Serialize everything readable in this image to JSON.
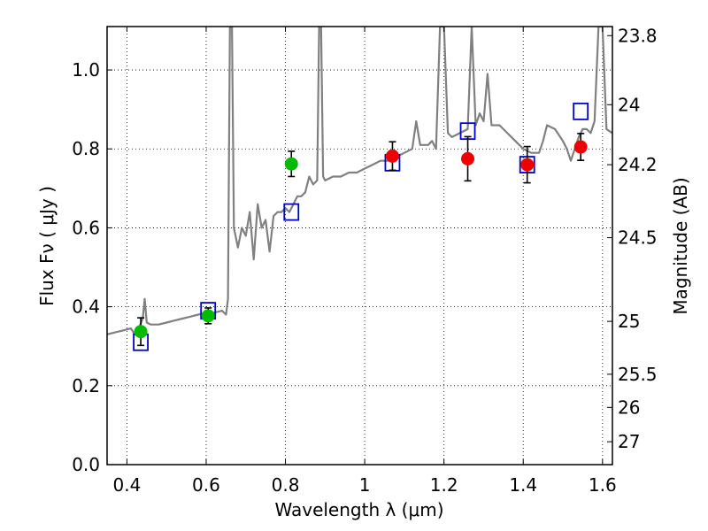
{
  "chart_data": {
    "type": "scatter",
    "xlabel": "Wavelength  λ (μm)",
    "ylabel": "Flux  Fν  ( μJy )",
    "y2label": "Magnitude (AB)",
    "xlim": [
      0.35,
      1.625
    ],
    "ylim": [
      0.0,
      1.11
    ],
    "grid": true,
    "x_ticks": [
      0.4,
      0.6,
      0.8,
      1.0,
      1.2,
      1.4,
      1.6
    ],
    "x_tick_labels": [
      "0.4",
      "0.6",
      "0.8",
      "1",
      "1.2",
      "1.4",
      "1.6"
    ],
    "y_ticks": [
      0.0,
      0.2,
      0.4,
      0.6,
      0.8,
      1.0
    ],
    "y_tick_labels": [
      "0.0",
      "0.2",
      "0.4",
      "0.6",
      "0.8",
      "1.0"
    ],
    "mag_ticks": [
      {
        "label": "23.8",
        "flux": 1.087
      },
      {
        "label": "24",
        "flux": 0.912
      },
      {
        "label": "24.2",
        "flux": 0.76
      },
      {
        "label": "24.5",
        "flux": 0.575
      },
      {
        "label": "25",
        "flux": 0.363
      },
      {
        "label": "25.5",
        "flux": 0.229
      },
      {
        "label": "26",
        "flux": 0.145
      },
      {
        "label": "27",
        "flux": 0.058
      }
    ],
    "series": [
      {
        "name": "model-spectrum",
        "kind": "line",
        "color": "#808080",
        "points": [
          [
            0.35,
            0.33
          ],
          [
            0.37,
            0.335
          ],
          [
            0.39,
            0.34
          ],
          [
            0.41,
            0.345
          ],
          [
            0.42,
            0.33
          ],
          [
            0.43,
            0.345
          ],
          [
            0.44,
            0.37
          ],
          [
            0.445,
            0.42
          ],
          [
            0.45,
            0.36
          ],
          [
            0.46,
            0.355
          ],
          [
            0.48,
            0.355
          ],
          [
            0.5,
            0.36
          ],
          [
            0.52,
            0.365
          ],
          [
            0.54,
            0.37
          ],
          [
            0.56,
            0.375
          ],
          [
            0.58,
            0.38
          ],
          [
            0.6,
            0.385
          ],
          [
            0.62,
            0.385
          ],
          [
            0.64,
            0.39
          ],
          [
            0.65,
            0.38
          ],
          [
            0.655,
            0.42
          ],
          [
            0.66,
            1.11
          ],
          [
            0.665,
            1.11
          ],
          [
            0.67,
            0.6
          ],
          [
            0.68,
            0.55
          ],
          [
            0.69,
            0.6
          ],
          [
            0.7,
            0.58
          ],
          [
            0.71,
            0.64
          ],
          [
            0.72,
            0.52
          ],
          [
            0.73,
            0.66
          ],
          [
            0.74,
            0.6
          ],
          [
            0.75,
            0.62
          ],
          [
            0.76,
            0.54
          ],
          [
            0.77,
            0.63
          ],
          [
            0.78,
            0.64
          ],
          [
            0.79,
            0.64
          ],
          [
            0.8,
            0.65
          ],
          [
            0.81,
            0.64
          ],
          [
            0.82,
            0.66
          ],
          [
            0.83,
            0.68
          ],
          [
            0.84,
            0.68
          ],
          [
            0.85,
            0.69
          ],
          [
            0.86,
            0.73
          ],
          [
            0.87,
            0.71
          ],
          [
            0.88,
            0.72
          ],
          [
            0.885,
            1.11
          ],
          [
            0.89,
            1.11
          ],
          [
            0.895,
            0.73
          ],
          [
            0.9,
            0.72
          ],
          [
            0.92,
            0.73
          ],
          [
            0.94,
            0.73
          ],
          [
            0.96,
            0.74
          ],
          [
            0.98,
            0.74
          ],
          [
            1.0,
            0.75
          ],
          [
            1.02,
            0.76
          ],
          [
            1.04,
            0.77
          ],
          [
            1.06,
            0.77
          ],
          [
            1.08,
            0.78
          ],
          [
            1.1,
            0.79
          ],
          [
            1.12,
            0.8
          ],
          [
            1.13,
            0.87
          ],
          [
            1.14,
            0.81
          ],
          [
            1.16,
            0.81
          ],
          [
            1.17,
            0.82
          ],
          [
            1.18,
            0.8
          ],
          [
            1.19,
            1.11
          ],
          [
            1.2,
            1.11
          ],
          [
            1.21,
            0.84
          ],
          [
            1.22,
            0.83
          ],
          [
            1.24,
            0.84
          ],
          [
            1.26,
            0.85
          ],
          [
            1.27,
            1.11
          ],
          [
            1.28,
            0.86
          ],
          [
            1.29,
            0.89
          ],
          [
            1.3,
            0.87
          ],
          [
            1.31,
            0.99
          ],
          [
            1.32,
            0.86
          ],
          [
            1.34,
            0.86
          ],
          [
            1.36,
            0.84
          ],
          [
            1.38,
            0.82
          ],
          [
            1.4,
            0.8
          ],
          [
            1.42,
            0.79
          ],
          [
            1.44,
            0.79
          ],
          [
            1.45,
            0.82
          ],
          [
            1.46,
            0.86
          ],
          [
            1.48,
            0.85
          ],
          [
            1.5,
            0.82
          ],
          [
            1.51,
            0.8
          ],
          [
            1.52,
            0.77
          ],
          [
            1.53,
            0.8
          ],
          [
            1.54,
            0.83
          ],
          [
            1.55,
            0.85
          ],
          [
            1.56,
            0.85
          ],
          [
            1.57,
            0.84
          ],
          [
            1.58,
            0.87
          ],
          [
            1.59,
            1.11
          ],
          [
            1.6,
            1.11
          ],
          [
            1.61,
            0.85
          ],
          [
            1.625,
            0.84
          ]
        ]
      },
      {
        "name": "model-photometry",
        "kind": "open-square",
        "color": "#0000cc",
        "points": [
          [
            0.435,
            0.31
          ],
          [
            0.605,
            0.39
          ],
          [
            0.815,
            0.64
          ],
          [
            1.07,
            0.765
          ],
          [
            1.26,
            0.845
          ],
          [
            1.41,
            0.76
          ],
          [
            1.545,
            0.895
          ]
        ]
      },
      {
        "name": "observed-optical",
        "kind": "filled-circle",
        "color": "#00bb00",
        "points": [
          {
            "x": 0.435,
            "y": 0.337,
            "err": 0.035
          },
          {
            "x": 0.605,
            "y": 0.377,
            "err": 0.02
          },
          {
            "x": 0.815,
            "y": 0.762,
            "err": 0.032
          }
        ]
      },
      {
        "name": "observed-nir",
        "kind": "filled-circle",
        "color": "#ee0000",
        "points": [
          {
            "x": 1.07,
            "y": 0.782,
            "err": 0.036
          },
          {
            "x": 1.26,
            "y": 0.775,
            "err": 0.056
          },
          {
            "x": 1.41,
            "y": 0.76,
            "err": 0.046
          },
          {
            "x": 1.545,
            "y": 0.805,
            "err": 0.034
          }
        ]
      }
    ]
  }
}
